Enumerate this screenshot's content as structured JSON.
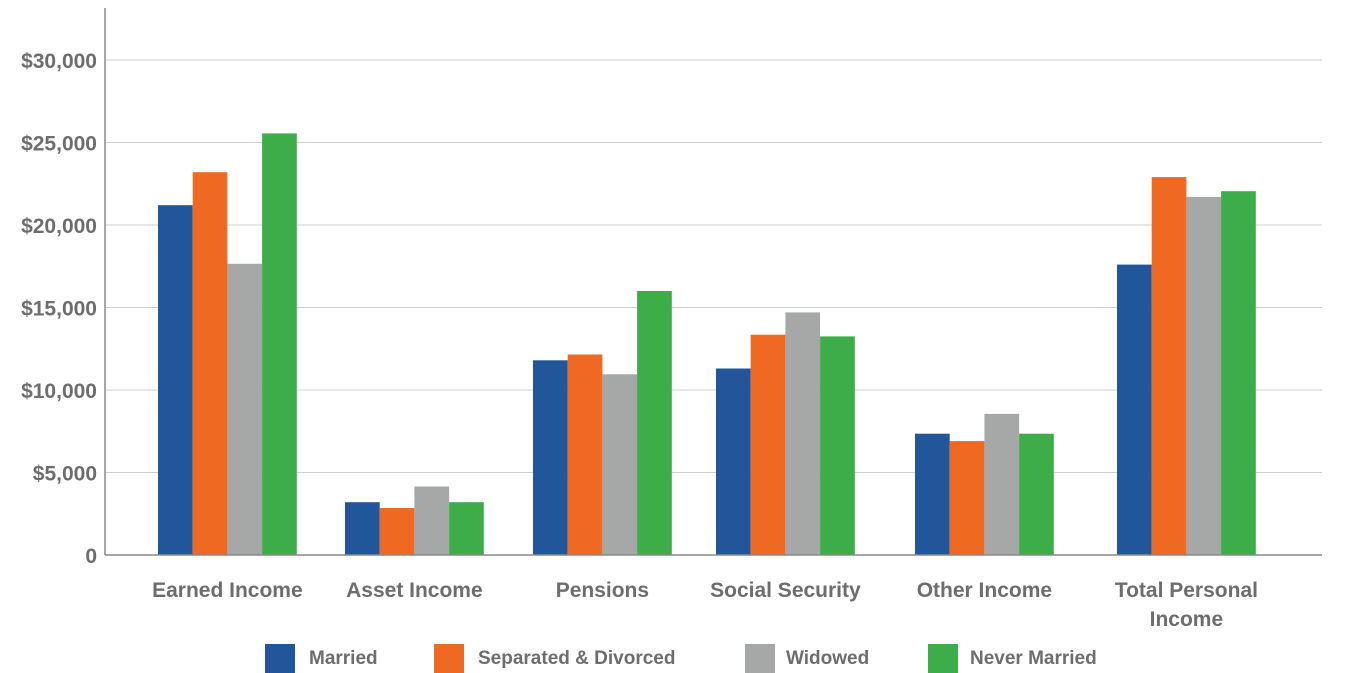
{
  "chart_data": {
    "type": "bar",
    "title": "",
    "xlabel": "",
    "ylabel": "",
    "ylim": [
      0,
      33000
    ],
    "grid": true,
    "legend_position": "bottom",
    "y_ticks": [
      {
        "value": 0,
        "label": "0"
      },
      {
        "value": 5000,
        "label": "$5,000"
      },
      {
        "value": 10000,
        "label": "$10,000"
      },
      {
        "value": 15000,
        "label": "$15,000"
      },
      {
        "value": 20000,
        "label": "$20,000"
      },
      {
        "value": 25000,
        "label": "$25,000"
      },
      {
        "value": 30000,
        "label": "$30,000"
      }
    ],
    "categories": [
      [
        "Earned Income"
      ],
      [
        "Asset Income"
      ],
      [
        "Pensions"
      ],
      [
        "Social Security"
      ],
      [
        "Other Income"
      ],
      [
        "Total Personal",
        "Income"
      ]
    ],
    "series": [
      {
        "name": "Married",
        "color": "#21579a",
        "values": [
          21200,
          3200,
          11800,
          11300,
          7350,
          17600
        ]
      },
      {
        "name": "Separated & Divorced",
        "color": "#f06923",
        "values": [
          23200,
          2850,
          12150,
          13350,
          6900,
          22900
        ]
      },
      {
        "name": "Widowed",
        "color": "#a6a8a8",
        "values": [
          17650,
          4150,
          10950,
          14700,
          8550,
          21700
        ]
      },
      {
        "name": "Never Married",
        "color": "#3dad49",
        "values": [
          25550,
          3200,
          16000,
          13250,
          7350,
          22050
        ]
      }
    ]
  }
}
